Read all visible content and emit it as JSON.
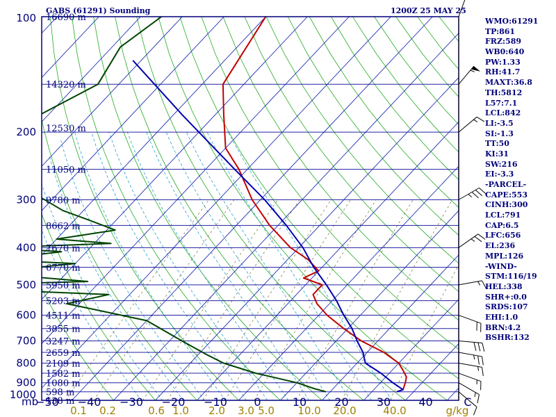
{
  "header": {
    "title": "GABS (61291) Sounding",
    "time": "1200Z 25 MAY 25"
  },
  "units": {
    "pressure": "mb",
    "mixing_ratio": "g/kg"
  },
  "stats": [
    "WMO:61291",
    "TP:861",
    "FRZ:589",
    "WB0:640",
    "PW:1.33",
    "RH:41.7",
    "MAXT:36.8",
    "TH:5812",
    "L57:7.1",
    "LCL:842",
    "LI:-3.5",
    "SI:-1.3",
    "TT:50",
    "KI:31",
    "SW:216",
    "EI:-3.3",
    "-PARCEL-",
    "CAPE:553",
    "CINH:300",
    "LCL:791",
    "CAP:6.5",
    "LFC:656",
    "EL:236",
    "MPL:126",
    "-WIND-",
    "STM:116/19",
    "HEL:338",
    "SHR+:0.0",
    "SRDS:107",
    "EHI:1.0",
    "BRN:4.2",
    "BSHR:132"
  ],
  "colors": {
    "axes": "#00007a",
    "isobar": "#2020a0",
    "isotherm": "#2030b0",
    "dry_adiabat": "#22aa22",
    "moist_adiabat": "#2aa0d0",
    "mixing_ratio": "#707030",
    "temperature": "#c00000",
    "dewpoint": "#004400",
    "parcel": "#0000b0",
    "mixing_label": "#a08000"
  },
  "chart_data": {
    "type": "line",
    "diagram": "skew-T log-P",
    "pressure_levels": [
      100,
      200,
      300,
      400,
      500,
      600,
      700,
      800,
      900,
      1000
    ],
    "x_ticks": [
      -50,
      -40,
      -30,
      -20,
      -10,
      0,
      10,
      20,
      30,
      40,
      50
    ],
    "x_tick_labels": [
      "50",
      "40",
      "30",
      "20",
      "10",
      "0",
      "10",
      "20",
      "30",
      "40",
      "C"
    ],
    "x_tick_signs": [
      "−",
      "−",
      "−",
      "−",
      "−",
      "",
      "",
      "",
      "",
      "",
      ""
    ],
    "height_labels": [
      {
        "p": 100,
        "text": "16690 m"
      },
      {
        "p": 150,
        "text": "14320 m"
      },
      {
        "p": 195,
        "text": "12530 m"
      },
      {
        "p": 250,
        "text": "11050 m"
      },
      {
        "p": 300,
        "text": "9780 m"
      },
      {
        "p": 350,
        "text": "8662 m"
      },
      {
        "p": 400,
        "text": "7670 m"
      },
      {
        "p": 450,
        "text": "6770 m"
      },
      {
        "p": 500,
        "text": "5950 m"
      },
      {
        "p": 550,
        "text": "5203 m"
      },
      {
        "p": 600,
        "text": "4511 m"
      },
      {
        "p": 650,
        "text": "3855 m"
      },
      {
        "p": 700,
        "text": "3247 m"
      },
      {
        "p": 750,
        "text": "2659 m"
      },
      {
        "p": 800,
        "text": "2109 m"
      },
      {
        "p": 850,
        "text": "1582 m"
      },
      {
        "p": 900,
        "text": "1080 m"
      },
      {
        "p": 950,
        "text": "598 m"
      },
      {
        "p": 1000,
        "text": "138 m"
      }
    ],
    "mixing_ratio_labels": [
      "0.1",
      "0.2",
      "0.6",
      "1.0",
      "2.0",
      "3.0",
      "5.0",
      "10.0",
      "20.0",
      "40.0"
    ],
    "mixing_ratio_values": [
      0.1,
      0.2,
      0.6,
      1.0,
      2.0,
      3.0,
      5.0,
      10.0,
      20.0,
      40.0
    ],
    "series": [
      {
        "key": "temperature",
        "points": [
          [
            100,
            -80
          ],
          [
            150,
            -75
          ],
          [
            180,
            -68
          ],
          [
            220,
            -60
          ],
          [
            250,
            -52
          ],
          [
            300,
            -42
          ],
          [
            350,
            -32
          ],
          [
            400,
            -22
          ],
          [
            430,
            -15
          ],
          [
            460,
            -10
          ],
          [
            480,
            -12
          ],
          [
            500,
            -6
          ],
          [
            530,
            -6
          ],
          [
            560,
            -3
          ],
          [
            600,
            2
          ],
          [
            650,
            9
          ],
          [
            700,
            16
          ],
          [
            750,
            24
          ],
          [
            800,
            30
          ],
          [
            840,
            33
          ],
          [
            870,
            35
          ],
          [
            900,
            36
          ],
          [
            938,
            37
          ],
          [
            950,
            36
          ]
        ]
      },
      {
        "key": "dewpoint",
        "points": [
          [
            100,
            -105
          ],
          [
            120,
            -108
          ],
          [
            150,
            -105
          ],
          [
            180,
            -112
          ],
          [
            210,
            -117
          ],
          [
            240,
            -116
          ],
          [
            280,
            -99
          ],
          [
            320,
            -85
          ],
          [
            345,
            -74
          ],
          [
            360,
            -68
          ],
          [
            380,
            -80
          ],
          [
            390,
            -66
          ],
          [
            400,
            -92
          ],
          [
            410,
            -76
          ],
          [
            430,
            -91
          ],
          [
            440,
            -70
          ],
          [
            465,
            -90
          ],
          [
            490,
            -63
          ],
          [
            505,
            -104
          ],
          [
            530,
            -55
          ],
          [
            560,
            -63
          ],
          [
            580,
            -55
          ],
          [
            620,
            -40
          ],
          [
            700,
            -27
          ],
          [
            760,
            -18
          ],
          [
            800,
            -12
          ],
          [
            850,
            -2
          ],
          [
            900,
            10
          ],
          [
            935,
            16
          ],
          [
            950,
            19
          ]
        ]
      },
      {
        "key": "parcel",
        "points": [
          [
            130,
            -102
          ],
          [
            180,
            -78
          ],
          [
            250,
            -53
          ],
          [
            300,
            -39
          ],
          [
            350,
            -28
          ],
          [
            400,
            -19
          ],
          [
            450,
            -12
          ],
          [
            500,
            -5
          ],
          [
            550,
            1
          ],
          [
            600,
            6
          ],
          [
            650,
            11
          ],
          [
            700,
            15
          ],
          [
            750,
            19
          ],
          [
            800,
            22
          ],
          [
            850,
            28
          ],
          [
            900,
            33
          ],
          [
            938,
            37
          ],
          [
            950,
            36
          ]
        ]
      }
    ],
    "wind_barbs": [
      {
        "p": 100,
        "direction": 20,
        "speed": 10
      },
      {
        "p": 150,
        "direction": 40,
        "speed": 55
      },
      {
        "p": 200,
        "direction": 50,
        "speed": 15
      },
      {
        "p": 300,
        "direction": 60,
        "speed": 35
      },
      {
        "p": 400,
        "direction": 55,
        "speed": 25
      },
      {
        "p": 500,
        "direction": 80,
        "speed": 15
      },
      {
        "p": 600,
        "direction": 110,
        "speed": 20
      },
      {
        "p": 700,
        "direction": 95,
        "speed": 30
      },
      {
        "p": 750,
        "direction": 100,
        "speed": 25
      },
      {
        "p": 800,
        "direction": 100,
        "speed": 15
      },
      {
        "p": 850,
        "direction": 110,
        "speed": 15
      },
      {
        "p": 900,
        "direction": 120,
        "speed": 15
      },
      {
        "p": 950,
        "direction": 130,
        "speed": 10
      }
    ]
  }
}
